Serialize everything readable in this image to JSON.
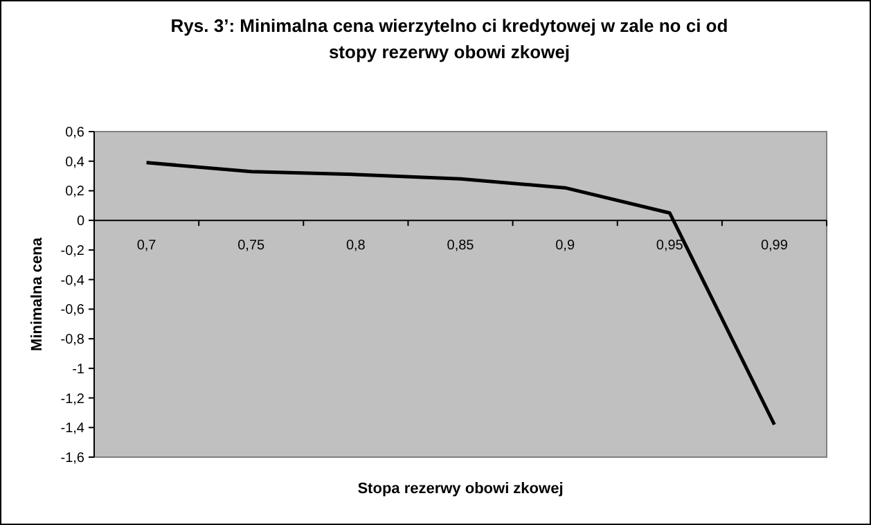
{
  "chart_data": {
    "type": "line",
    "title": "Rys. 3’: Minimalna cena wierzytelno  ci kredytowej w zale  no  ci od\nstopy rezerwy obowi  zkowej",
    "xlabel": "Stopa rezerwy obowi  zkowej",
    "ylabel": "Minimalna cena",
    "categories": [
      "0,7",
      "0,75",
      "0,8",
      "0,85",
      "0,9",
      "0,95",
      "0,99"
    ],
    "series": [
      {
        "color": "#000000",
        "values": [
          0.39,
          0.33,
          0.31,
          0.28,
          0.22,
          0.05,
          -1.38
        ]
      }
    ],
    "ylim": [
      -1.6,
      0.6
    ],
    "yticks": [
      {
        "value": 0.6,
        "label": "0,6"
      },
      {
        "value": 0.4,
        "label": "0,4"
      },
      {
        "value": 0.2,
        "label": "0,2"
      },
      0,
      {
        "value": -0.2,
        "label": "-0,2"
      },
      {
        "value": -0.4,
        "label": "-0,4"
      },
      {
        "value": -0.6,
        "label": "-0,6"
      },
      {
        "value": -0.8,
        "label": "-0,8"
      },
      -1,
      {
        "value": -1.2,
        "label": "-1,2"
      },
      {
        "value": -1.4,
        "label": "-1,4"
      },
      {
        "value": -1.6,
        "label": "-1,6"
      }
    ],
    "marker": "none",
    "line_style": "solid"
  }
}
